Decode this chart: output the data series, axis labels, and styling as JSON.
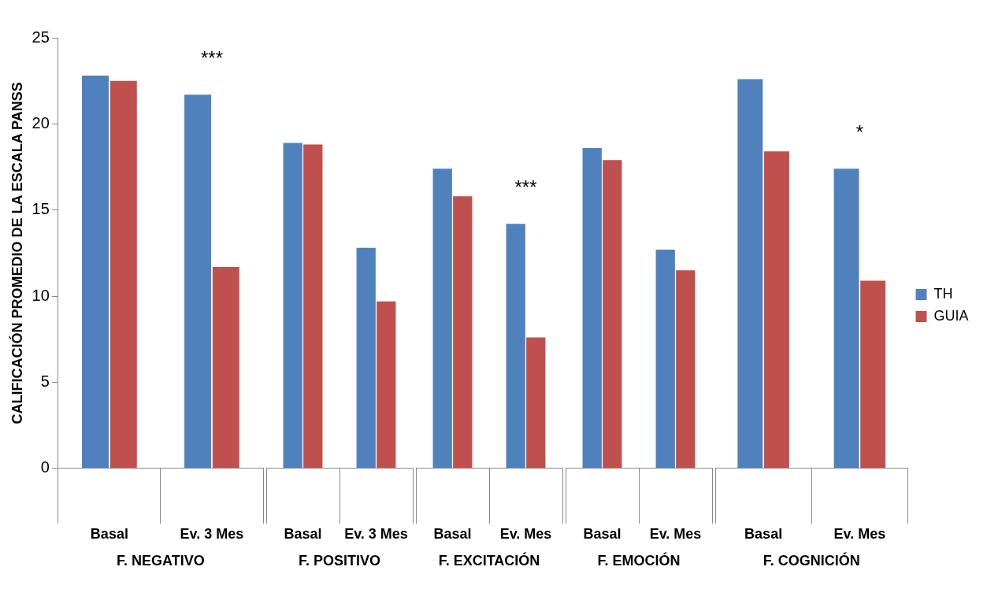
{
  "chart_data": [
    {
      "type": "bar",
      "ylabel": "CALIFICACIÓN PROMEDIO DE LA ESCALA PANSS",
      "xlabel": "F. NEGATIVO",
      "categories": [
        "Basal",
        "Ev. 3 Mes"
      ],
      "ylim": [
        0,
        25
      ],
      "yticks": [
        0,
        5,
        10,
        15,
        20,
        25
      ],
      "series": [
        {
          "color": "#4f81bd",
          "values": [
            22.8,
            21.7
          ]
        },
        {
          "color": "#c0504d",
          "values": [
            22.5,
            11.7
          ]
        }
      ],
      "annotations": [
        "***"
      ]
    },
    {
      "type": "bar",
      "xlabel": "F. POSITIVO",
      "categories": [
        "Basal",
        "Ev. 3 Mes"
      ],
      "ylim": [
        0,
        25
      ],
      "yticks": [
        0,
        5,
        10,
        15,
        20,
        25
      ],
      "tick_labels": "x",
      "series": [
        {
          "color": "#4f81bd",
          "values": [
            18.9,
            12.8
          ]
        },
        {
          "color": "#c0504d",
          "values": [
            18.8,
            9.7
          ]
        }
      ]
    },
    {
      "type": "bar",
      "xlabel": "F. EXCITACIÓN",
      "categories": [
        "Basal",
        "Ev. Mes"
      ],
      "ylim": [
        0,
        25
      ],
      "yticks": [
        0,
        5,
        10,
        15,
        20,
        25
      ],
      "tick_labels": "x",
      "series": [
        {
          "color": "#4f81bd",
          "values": [
            17.4,
            14.2
          ]
        },
        {
          "color": "#c0504d",
          "values": [
            15.8,
            7.6
          ]
        }
      ],
      "annotations": [
        "***"
      ]
    },
    {
      "type": "bar",
      "xlabel": "F. EMOCIÓN",
      "categories": [
        "Basal",
        "Ev. Mes"
      ],
      "ylim": [
        0,
        25
      ],
      "yticks": [
        0,
        5,
        10,
        15,
        20,
        25
      ],
      "tick_labels": "x",
      "series": [
        {
          "color": "#4f81bd",
          "values": [
            18.6,
            12.7
          ]
        },
        {
          "color": "#c0504d",
          "values": [
            17.9,
            11.5
          ]
        }
      ]
    },
    {
      "type": "bar",
      "xlabel": "F. COGNICIÓN",
      "categories": [
        "Basal",
        "Ev. Mes"
      ],
      "ylim": [
        0,
        25
      ],
      "yticks": [
        0,
        5,
        10,
        15,
        20,
        25
      ],
      "tick_labels": "x",
      "legend": "right",
      "series": [
        {
          "name": "TH",
          "color": "#4f81bd",
          "values": [
            22.6,
            17.4
          ]
        },
        {
          "name": "GUIA",
          "color": "#c0504d",
          "values": [
            18.4,
            10.9
          ]
        }
      ],
      "annotations": [
        "*"
      ]
    }
  ]
}
